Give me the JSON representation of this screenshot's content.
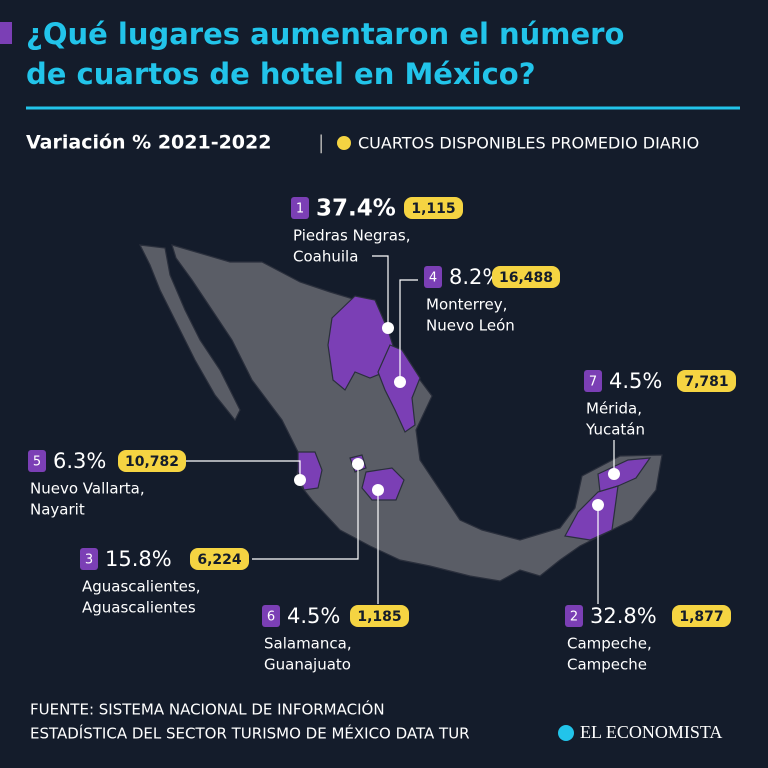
{
  "header": {
    "title_line1": "¿Qué lugares aumentaron el número",
    "title_line2": "de cuartos de hotel en México?",
    "subtitle": "Variación % 2021-2022",
    "separator": "|",
    "legend": "CUARTOS DISPONIBLES PROMEDIO DIARIO"
  },
  "locations": [
    {
      "rank": "1",
      "change": "37.4%",
      "rooms": "1,115",
      "name": [
        "Piedras Negras,",
        "Coahuila"
      ]
    },
    {
      "rank": "2",
      "change": "32.8%",
      "rooms": "1,877",
      "name": [
        "Campeche,",
        "Campeche"
      ]
    },
    {
      "rank": "3",
      "change": "15.8%",
      "rooms": "6,224",
      "name": [
        "Aguascalientes,",
        "Aguascalientes"
      ]
    },
    {
      "rank": "4",
      "change": "8.2%",
      "rooms": "16,488",
      "name": [
        "Monterrey,",
        "Nuevo León"
      ]
    },
    {
      "rank": "5",
      "change": "6.3%",
      "rooms": "10,782",
      "name": [
        "Nuevo Vallarta,",
        "Nayarit"
      ]
    },
    {
      "rank": "6",
      "change": "4.5%",
      "rooms": "1,185",
      "name": [
        "Salamanca,",
        "Guanajuato"
      ]
    },
    {
      "rank": "7",
      "change": "4.5%",
      "rooms": "7,781",
      "name": [
        "Mérida,",
        "Yucatán"
      ]
    }
  ],
  "source": [
    "FUENTE: SISTEMA NACIONAL DE INFORMACIÓN",
    "ESTADÍSTICA DEL SECTOR TURISMO DE MÉXICO DATA TUR"
  ],
  "logo": "EL ECONOMISTA"
}
